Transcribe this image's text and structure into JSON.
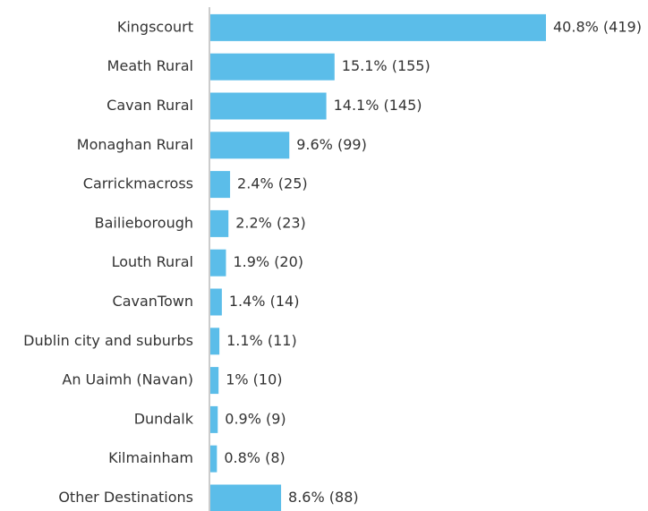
{
  "chart_data": {
    "type": "barh",
    "categories": [
      "Kingscourt",
      "Meath Rural",
      "Cavan Rural",
      "Monaghan Rural",
      "Carrickmacross",
      "Bailieborough",
      "Louth Rural",
      "CavanTown",
      "Dublin city and suburbs",
      "An Uaimh (Navan)",
      "Dundalk",
      "Kilmainham",
      "Other Destinations"
    ],
    "values": [
      40.8,
      15.1,
      14.1,
      9.6,
      2.4,
      2.2,
      1.9,
      1.4,
      1.1,
      1,
      0.9,
      0.8,
      8.6
    ],
    "value_labels": [
      "40.8% (419)",
      "15.1% (155)",
      "14.1% (145)",
      "9.6% (99)",
      "2.4% (25)",
      "2.2% (23)",
      "1.9% (20)",
      "1.4% (14)",
      "1.1% (11)",
      "1% (10)",
      "0.9% (9)",
      "0.8% (8)",
      "8.6% (88)"
    ],
    "color": "#5bbde9"
  }
}
